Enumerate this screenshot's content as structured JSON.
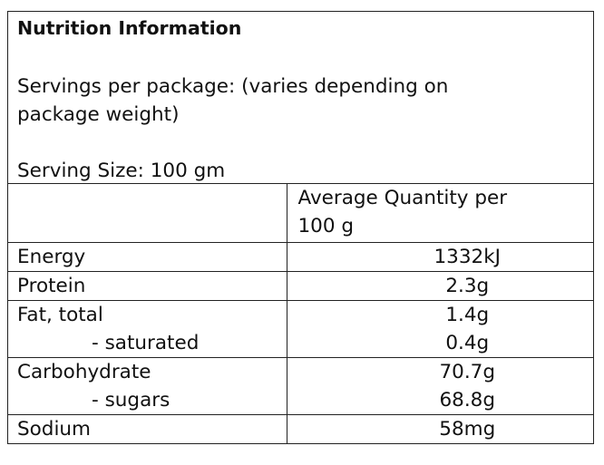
{
  "header": {
    "title": "Nutrition Information",
    "servings": [
      "Servings per package: (varies depending on",
      "package weight)"
    ],
    "serving_size": "Serving Size: 100 gm"
  },
  "table": {
    "column_header": [
      "Average Quantity per",
      "100 g"
    ],
    "rows": [
      {
        "lines": [
          [
            "Energy",
            "1332kJ"
          ]
        ]
      },
      {
        "lines": [
          [
            "Protein",
            "2.3g"
          ]
        ]
      },
      {
        "lines": [
          [
            "Fat, total",
            "1.4g"
          ],
          [
            "- saturated",
            "0.4g"
          ]
        ]
      },
      {
        "lines": [
          [
            "Carbohydrate",
            "70.7g"
          ],
          [
            "- sugars",
            "68.8g"
          ]
        ]
      },
      {
        "lines": [
          [
            "Sodium",
            "58mg"
          ]
        ]
      }
    ]
  }
}
